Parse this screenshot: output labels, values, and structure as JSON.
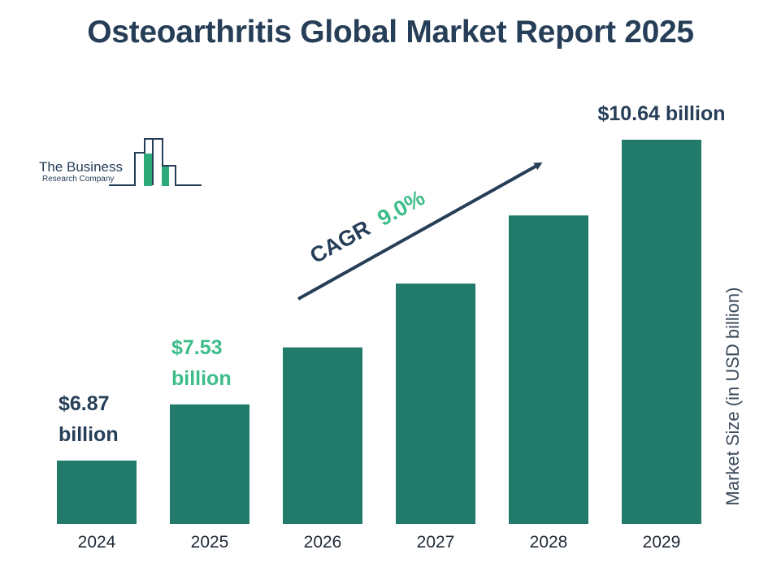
{
  "chart_data": {
    "type": "bar",
    "title": "Osteoarthritis Global Market Report 2025",
    "ylabel": "Market Size (in USD billion)",
    "xlabel": "",
    "categories": [
      "2024",
      "2025",
      "2026",
      "2027",
      "2028",
      "2029"
    ],
    "values": [
      6.87,
      7.53,
      8.2,
      8.95,
      9.75,
      10.64
    ],
    "value_labels": [
      {
        "index": 0,
        "lines": [
          "$6.87",
          "billion"
        ],
        "color": "#263e57"
      },
      {
        "index": 1,
        "lines": [
          "$7.53",
          "billion"
        ],
        "color": "#3dbd8a"
      },
      {
        "index": 5,
        "lines": [
          "$10.64 billion"
        ],
        "color": "#263e57"
      }
    ],
    "bar_color": "#227a6a",
    "annotation": {
      "label": "CAGR",
      "value": "9.0%",
      "label_color": "#263e57",
      "value_color": "#3dbd8a"
    },
    "grid": false
  },
  "logo": {
    "line1": "The Business",
    "line2": "Research Company",
    "icon": "building-chart-icon",
    "accent_color": "#2eaa7a",
    "text_color": "#263e57"
  }
}
